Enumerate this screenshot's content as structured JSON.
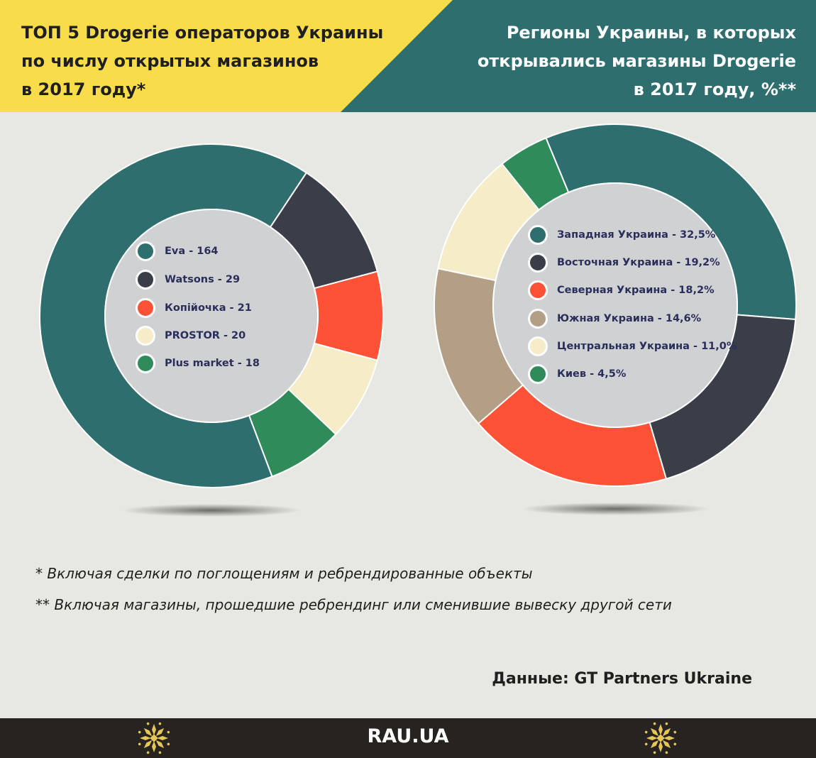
{
  "header": {
    "left_title": [
      "ТОП 5 Drogerie операторов Украины",
      "по числу открытых магазинов",
      "в 2017 году*"
    ],
    "right_title": [
      "Регионы Украины, в которых",
      "открывались магазины Drogerie",
      "в 2017 году, %**"
    ],
    "colors": {
      "yellow": "#f8dc4a",
      "teal": "#2f6e6e"
    }
  },
  "chart_data": [
    {
      "type": "donut",
      "categories": [
        "Eva",
        "Watsons",
        "Копійочка",
        "PROSTOR",
        "Plus market"
      ],
      "values": [
        164,
        29,
        21,
        20,
        18
      ],
      "legend": [
        "Eva - 164",
        "Watsons - 29",
        "Копійочка - 21",
        "PROSTOR - 20",
        "Plus market - 18"
      ],
      "colors": [
        "#2f6e6e",
        "#393e49",
        "#fd5236",
        "#f6ecc8",
        "#2f8c5a"
      ]
    },
    {
      "type": "donut",
      "categories": [
        "Западная Украина",
        "Восточная Украина",
        "Северная Украина",
        "Южная Украина",
        "Центральная Украина",
        "Киев"
      ],
      "values": [
        32.5,
        19.2,
        18.2,
        14.6,
        11.0,
        4.5
      ],
      "unit": "%",
      "legend": [
        "Западная Украина - 32,5%",
        "Восточная Украина - 19,2%",
        "Северная Украина - 18,2%",
        "Южная Украина - 14,6%",
        "Центральная  Украина - 11,0%",
        "Киев - 4,5%"
      ],
      "colors": [
        "#2f6e6e",
        "#393e49",
        "#fd5236",
        "#b39e86",
        "#f6ecc8",
        "#2f8c5a"
      ]
    }
  ],
  "footnotes": [
    "* Включая сделки по поглощениям и ребрендированные объекты",
    "** Включая магазины, прошедшие ребрендинг или сменившие вывеску другой сети"
  ],
  "source": "Данные: GT Partners Ukraine",
  "footer": {
    "brand": "RAU.UA"
  }
}
